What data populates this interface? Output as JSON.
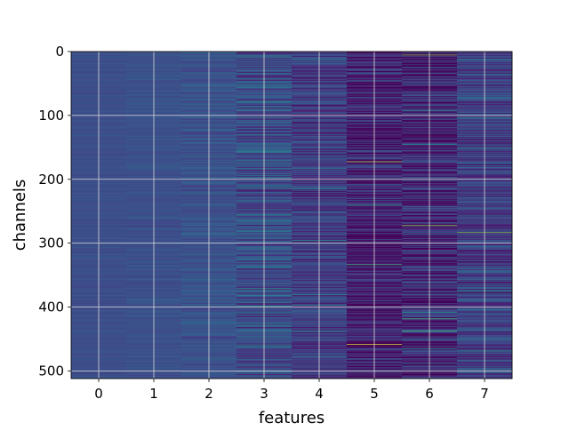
{
  "chart_data": {
    "type": "heatmap",
    "xlabel": "features",
    "ylabel": "channels",
    "x_categories": [
      "0",
      "1",
      "2",
      "3",
      "4",
      "5",
      "6",
      "7"
    ],
    "y_tick_labels": [
      "0",
      "100",
      "200",
      "300",
      "400",
      "500"
    ],
    "y_tick_values": [
      0,
      100,
      200,
      300,
      400,
      500
    ],
    "y_range": [
      0,
      512
    ],
    "y_inverted": true,
    "colormap": "viridis",
    "grid": true,
    "features": [
      {
        "feature": "0",
        "base": 0.3,
        "noise": 0.03,
        "spikes": []
      },
      {
        "feature": "1",
        "base": 0.31,
        "noise": 0.05,
        "spikes": []
      },
      {
        "feature": "2",
        "base": 0.32,
        "noise": 0.09,
        "spikes": []
      },
      {
        "feature": "3",
        "base": 0.3,
        "noise": 0.2,
        "spikes": [
          [
            8,
            0.62
          ],
          [
            155,
            0.58
          ],
          [
            218,
            0.05
          ],
          [
            370,
            0.62
          ],
          [
            398,
            0.6
          ],
          [
            460,
            0.62
          ]
        ]
      },
      {
        "feature": "4",
        "base": 0.22,
        "noise": 0.16,
        "spikes": [
          [
            12,
            0.62
          ],
          [
            182,
            0.6
          ],
          [
            215,
            0.62
          ],
          [
            295,
            0.62
          ],
          [
            380,
            0.62
          ],
          [
            397,
            0.62
          ],
          [
            437,
            0.62
          ],
          [
            498,
            0.05
          ]
        ]
      },
      {
        "feature": "5",
        "base": 0.1,
        "noise": 0.22,
        "spikes": [
          [
            2,
            0.02
          ],
          [
            172,
            0.92
          ],
          [
            240,
            0.75
          ],
          [
            258,
            0.02
          ],
          [
            333,
            0.78
          ],
          [
            352,
            0.02
          ],
          [
            458,
            0.97
          ]
        ]
      },
      {
        "feature": "6",
        "base": 0.14,
        "noise": 0.22,
        "spikes": [
          [
            5,
            0.88
          ],
          [
            92,
            0.6
          ],
          [
            145,
            0.62
          ],
          [
            272,
            0.9
          ],
          [
            408,
            0.62
          ],
          [
            418,
            0.8
          ],
          [
            437,
            0.8
          ],
          [
            465,
            0.62
          ]
        ]
      },
      {
        "feature": "7",
        "base": 0.24,
        "noise": 0.18,
        "spikes": [
          [
            72,
            0.62
          ],
          [
            150,
            0.6
          ],
          [
            283,
            0.88
          ],
          [
            375,
            0.62
          ],
          [
            468,
            0.62
          ]
        ]
      }
    ],
    "notes_values": "normalized color value per (feature, channel): base level, noise amplitude, and highlighted channel rows with their values"
  }
}
